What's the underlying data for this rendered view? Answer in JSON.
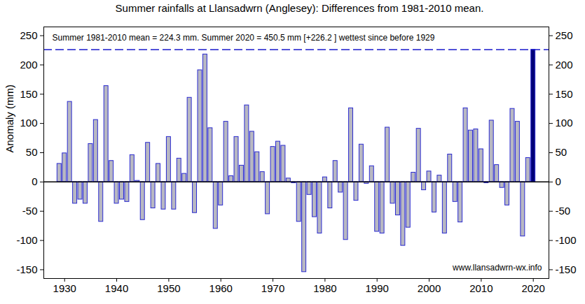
{
  "chart_data": {
    "type": "bar",
    "title": "Summer rainfalls at Llansadwrn (Anglesey): Differences from 1981-2010 mean.",
    "y_label": "Anomaly (mm)",
    "annotation": "Summer 1981-2010 mean = 224.3 mm. Summer 2020 = 450.5 mm [+226.2 ] wettest since before 1929",
    "source": "www.llansadwrn-wx.info",
    "hline": {
      "value": 226.2,
      "line_style": "dashed",
      "color": "#1a1acc"
    },
    "x": [
      1929,
      1930,
      1931,
      1932,
      1933,
      1934,
      1935,
      1936,
      1937,
      1938,
      1939,
      1940,
      1941,
      1942,
      1943,
      1944,
      1945,
      1946,
      1947,
      1948,
      1949,
      1950,
      1951,
      1952,
      1953,
      1954,
      1955,
      1956,
      1957,
      1958,
      1959,
      1960,
      1961,
      1962,
      1963,
      1964,
      1965,
      1966,
      1967,
      1968,
      1969,
      1970,
      1971,
      1972,
      1973,
      1974,
      1975,
      1976,
      1977,
      1978,
      1979,
      1980,
      1981,
      1982,
      1983,
      1984,
      1985,
      1986,
      1987,
      1988,
      1989,
      1990,
      1991,
      1992,
      1993,
      1994,
      1995,
      1996,
      1997,
      1998,
      1999,
      2000,
      2001,
      2002,
      2003,
      2004,
      2005,
      2006,
      2007,
      2008,
      2009,
      2010,
      2011,
      2012,
      2013,
      2014,
      2015,
      2016,
      2017,
      2018,
      2019,
      2020
    ],
    "values": [
      31,
      49,
      137,
      -37,
      -30,
      -37,
      65,
      106,
      -68,
      164,
      36,
      -37,
      -30,
      -34,
      46,
      2,
      -65,
      67,
      -45,
      31,
      -47,
      77,
      -47,
      40,
      14,
      144,
      -53,
      191,
      218,
      92,
      -80,
      -40,
      103,
      10,
      77,
      28,
      131,
      86,
      51,
      17,
      -55,
      60,
      69,
      62,
      6,
      -2,
      -68,
      -154,
      -22,
      -60,
      -88,
      8,
      -45,
      36,
      -18,
      -99,
      126,
      -32,
      64,
      -3,
      27,
      -85,
      -88,
      93,
      -37,
      -57,
      -109,
      -78,
      16,
      91,
      -14,
      18,
      -52,
      11,
      -88,
      47,
      -34,
      -69,
      126,
      88,
      90,
      56,
      -2,
      105,
      29,
      -10,
      -40,
      125,
      103,
      -93,
      41,
      226.2
    ],
    "colors": [
      "#b8b8c2",
      "#b8b8c2",
      "#b8b8c2",
      "#b8b8c2",
      "#b8b8c2",
      "#b8b8c2",
      "#b8b8c2",
      "#b8b8c2",
      "#b8b8c2",
      "#b8b8c2",
      "#b8b8c2",
      "#b8b8c2",
      "#b8b8c2",
      "#b8b8c2",
      "#b8b8c2",
      "#b8b8c2",
      "#b8b8c2",
      "#b8b8c2",
      "#b8b8c2",
      "#b8b8c2",
      "#b8b8c2",
      "#b8b8c2",
      "#b8b8c2",
      "#b8b8c2",
      "#b8b8c2",
      "#b8b8c2",
      "#b8b8c2",
      "#b8b8c2",
      "#b8b8c2",
      "#b8b8c2",
      "#b8b8c2",
      "#b8b8c2",
      "#b8b8c2",
      "#b8b8c2",
      "#b8b8c2",
      "#b8b8c2",
      "#b8b8c2",
      "#b8b8c2",
      "#b8b8c2",
      "#b8b8c2",
      "#b8b8c2",
      "#b8b8c2",
      "#b8b8c2",
      "#b8b8c2",
      "#b8b8c2",
      "#b8b8c2",
      "#b8b8c2",
      "#b8b8c2",
      "#b8b8c2",
      "#b8b8c2",
      "#b8b8c2",
      "#b8b8c2",
      "#b8b8c2",
      "#b8b8c2",
      "#b8b8c2",
      "#b8b8c2",
      "#b8b8c2",
      "#b8b8c2",
      "#b8b8c2",
      "#b8b8c2",
      "#b8b8c2",
      "#b8b8c2",
      "#b8b8c2",
      "#b8b8c2",
      "#b8b8c2",
      "#b8b8c2",
      "#b8b8c2",
      "#b8b8c2",
      "#b8b8c2",
      "#b8b8c2",
      "#b8b8c2",
      "#b8b8c2",
      "#b8b8c2",
      "#b8b8c2",
      "#b8b8c2",
      "#b8b8c2",
      "#b8b8c2",
      "#b8b8c2",
      "#b8b8c2",
      "#b8b8c2",
      "#b8b8c2",
      "#b8b8c2",
      "#b8b8c2",
      "#b8b8c2",
      "#b8b8c2",
      "#b8b8c2",
      "#b8b8c2",
      "#b8b8c2",
      "#b8b8c2",
      "#b8b8c2",
      "#b8b8c2",
      "#000078"
    ],
    "xlim": [
      1926,
      2023
    ],
    "xticks": [
      1930,
      1940,
      1950,
      1960,
      1970,
      1980,
      1990,
      2000,
      2010,
      2020
    ],
    "ylim": [
      -165,
      265
    ],
    "yticks": [
      -150,
      -100,
      -50,
      0,
      50,
      100,
      150,
      200,
      250
    ],
    "grid": false
  }
}
